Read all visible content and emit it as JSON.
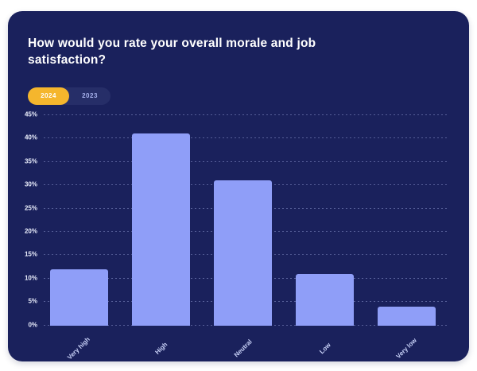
{
  "card": {
    "title": "How would you rate your overall morale and job satisfaction?"
  },
  "toggle": {
    "options": [
      {
        "label": "2024",
        "active": true
      },
      {
        "label": "2023",
        "active": false
      }
    ]
  },
  "colors": {
    "card_bg": "#1A215C",
    "title_text": "#FFFFFF",
    "bar": "#8F9EF8",
    "accent_yellow": "#F5B62D",
    "toggle_track": "#262E68",
    "toggle_inactive_text": "#A9B4EF",
    "grid": "#AEB8F066",
    "y_label": "#E9EDFB",
    "x_label": "#C9D2F8"
  },
  "chart_data": {
    "type": "bar",
    "title": "How would you rate your overall morale and job satisfaction?",
    "categories": [
      "Very high",
      "High",
      "Neutral",
      "Low",
      "Very low"
    ],
    "values": [
      12,
      41,
      31,
      11,
      4
    ],
    "series_shown": "2024",
    "legend": [
      "2024",
      "2023"
    ],
    "legend_position": "top-left toggle",
    "xlabel": "",
    "ylabel": "",
    "ylim": [
      0,
      45
    ],
    "ytick_step": 5,
    "ytick_suffix": "%",
    "grid": "horizontal dotted"
  }
}
